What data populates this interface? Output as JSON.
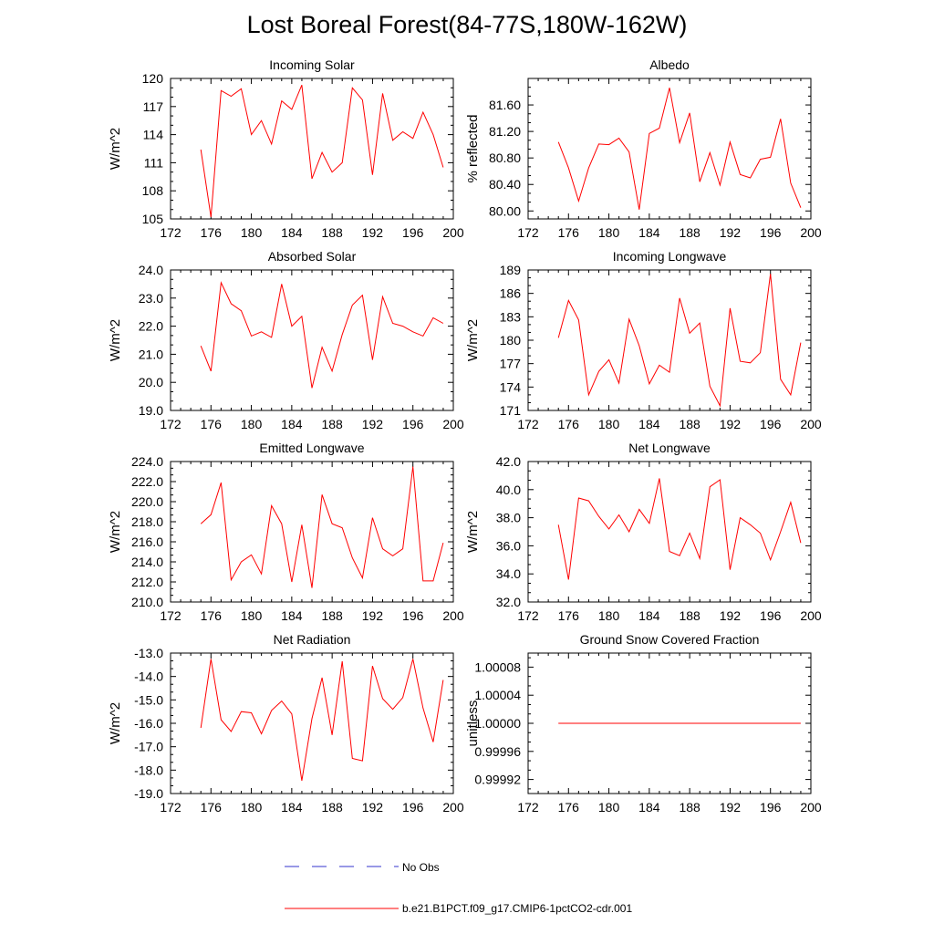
{
  "title": "Lost Boreal Forest(84-77S,180W-162W)",
  "series_color": "#ff0000",
  "obs_color": "#3333cc",
  "legend": {
    "obs_label": "No Obs",
    "model_label": "b.e21.B1PCT.f09_g17.CMIP6-1pctCO2-cdr.001"
  },
  "chart_data": [
    {
      "type": "line",
      "title": "Incoming Solar",
      "ylabel": "W/m^2",
      "xlim": [
        172,
        200
      ],
      "xticks": [
        "172",
        "176",
        "180",
        "184",
        "188",
        "192",
        "196",
        "200"
      ],
      "ylim": [
        105,
        120
      ],
      "yticks": [
        "105",
        "108",
        "111",
        "114",
        "117",
        "120"
      ],
      "x": [
        175,
        176,
        177,
        178,
        179,
        180,
        181,
        182,
        183,
        184,
        185,
        186,
        187,
        188,
        189,
        190,
        191,
        192,
        193,
        194,
        195,
        196,
        197,
        198,
        199
      ],
      "series": [
        {
          "values": [
            112.4,
            105.2,
            118.7,
            118.1,
            118.9,
            114.0,
            115.5,
            113.0,
            117.6,
            116.7,
            119.3,
            109.3,
            112.1,
            110.0,
            111.0,
            119.0,
            117.7,
            109.7,
            118.4,
            113.4,
            114.3,
            113.6,
            116.4,
            114.0,
            110.5
          ]
        }
      ]
    },
    {
      "type": "line",
      "title": "Albedo",
      "ylabel": "% reflected",
      "xlim": [
        172,
        200
      ],
      "xticks": [
        "172",
        "176",
        "180",
        "184",
        "188",
        "192",
        "196",
        "200"
      ],
      "ylim": [
        79.88,
        82.0
      ],
      "yticks": [
        "80.00",
        "80.40",
        "80.80",
        "81.20",
        "81.60"
      ],
      "x": [
        175,
        176,
        177,
        178,
        179,
        180,
        181,
        182,
        183,
        184,
        185,
        186,
        187,
        188,
        189,
        190,
        191,
        192,
        193,
        194,
        195,
        196,
        197,
        198,
        199
      ],
      "series": [
        {
          "values": [
            81.04,
            80.65,
            80.15,
            80.65,
            81.01,
            81.0,
            81.1,
            80.89,
            80.02,
            81.17,
            81.25,
            81.86,
            81.03,
            81.48,
            80.44,
            80.88,
            80.39,
            81.04,
            80.55,
            80.5,
            80.78,
            80.81,
            81.39,
            80.42,
            80.05
          ]
        }
      ]
    },
    {
      "type": "line",
      "title": "Absorbed Solar",
      "ylabel": "W/m^2",
      "xlim": [
        172,
        200
      ],
      "xticks": [
        "172",
        "176",
        "180",
        "184",
        "188",
        "192",
        "196",
        "200"
      ],
      "ylim": [
        19.0,
        24.0
      ],
      "yticks": [
        "19.0",
        "20.0",
        "21.0",
        "22.0",
        "23.0",
        "24.0"
      ],
      "x": [
        175,
        176,
        177,
        178,
        179,
        180,
        181,
        182,
        183,
        184,
        185,
        186,
        187,
        188,
        189,
        190,
        191,
        192,
        193,
        194,
        195,
        196,
        197,
        198,
        199
      ],
      "series": [
        {
          "values": [
            21.3,
            20.4,
            23.55,
            22.8,
            22.55,
            21.65,
            21.8,
            21.6,
            23.5,
            22.0,
            22.35,
            19.8,
            21.25,
            20.4,
            21.7,
            22.75,
            23.1,
            20.8,
            23.05,
            22.1,
            22.0,
            21.8,
            21.65,
            22.3,
            22.1
          ]
        }
      ]
    },
    {
      "type": "line",
      "title": "Incoming Longwave",
      "ylabel": "W/m^2",
      "xlim": [
        172,
        200
      ],
      "xticks": [
        "172",
        "176",
        "180",
        "184",
        "188",
        "192",
        "196",
        "200"
      ],
      "ylim": [
        171,
        189
      ],
      "yticks": [
        "171",
        "174",
        "177",
        "180",
        "183",
        "186",
        "189"
      ],
      "x": [
        175,
        176,
        177,
        178,
        179,
        180,
        181,
        182,
        183,
        184,
        185,
        186,
        187,
        188,
        189,
        190,
        191,
        192,
        193,
        194,
        195,
        196,
        197,
        198,
        199
      ],
      "series": [
        {
          "values": [
            180.3,
            185.1,
            182.6,
            173.0,
            176.0,
            177.5,
            174.5,
            182.7,
            179.3,
            174.4,
            176.8,
            175.9,
            185.4,
            180.9,
            182.2,
            174.1,
            171.6,
            184.1,
            177.3,
            177.1,
            178.4,
            188.5,
            175.0,
            173.0,
            179.7
          ]
        }
      ]
    },
    {
      "type": "line",
      "title": "Emitted Longwave",
      "ylabel": "W/m^2",
      "xlim": [
        172,
        200
      ],
      "xticks": [
        "172",
        "176",
        "180",
        "184",
        "188",
        "192",
        "196",
        "200"
      ],
      "ylim": [
        210.0,
        224.0
      ],
      "yticks": [
        "210.0",
        "212.0",
        "214.0",
        "216.0",
        "218.0",
        "220.0",
        "222.0",
        "224.0"
      ],
      "x": [
        175,
        176,
        177,
        178,
        179,
        180,
        181,
        182,
        183,
        184,
        185,
        186,
        187,
        188,
        189,
        190,
        191,
        192,
        193,
        194,
        195,
        196,
        197,
        198,
        199
      ],
      "series": [
        {
          "values": [
            217.8,
            218.7,
            221.9,
            212.2,
            214.0,
            214.7,
            212.8,
            219.6,
            217.8,
            212.0,
            217.7,
            211.4,
            220.7,
            217.8,
            217.4,
            214.4,
            212.4,
            218.4,
            215.3,
            214.6,
            215.3,
            223.5,
            212.1,
            212.1,
            215.9
          ]
        }
      ]
    },
    {
      "type": "line",
      "title": "Net Longwave",
      "ylabel": "W/m^2",
      "xlim": [
        172,
        200
      ],
      "xticks": [
        "172",
        "176",
        "180",
        "184",
        "188",
        "192",
        "196",
        "200"
      ],
      "ylim": [
        32.0,
        42.0
      ],
      "yticks": [
        "32.0",
        "34.0",
        "36.0",
        "38.0",
        "40.0",
        "42.0"
      ],
      "x": [
        175,
        176,
        177,
        178,
        179,
        180,
        181,
        182,
        183,
        184,
        185,
        186,
        187,
        188,
        189,
        190,
        191,
        192,
        193,
        194,
        195,
        196,
        197,
        198,
        199
      ],
      "series": [
        {
          "values": [
            37.5,
            33.6,
            39.4,
            39.2,
            38.1,
            37.2,
            38.2,
            37.0,
            38.6,
            37.6,
            40.8,
            35.6,
            35.3,
            36.9,
            35.1,
            40.2,
            40.7,
            34.3,
            38.0,
            37.5,
            36.9,
            35.0,
            37.0,
            39.1,
            36.2
          ]
        }
      ]
    },
    {
      "type": "line",
      "title": "Net Radiation",
      "ylabel": "W/m^2",
      "xlim": [
        172,
        200
      ],
      "xticks": [
        "172",
        "176",
        "180",
        "184",
        "188",
        "192",
        "196",
        "200"
      ],
      "ylim": [
        -19.0,
        -13.0
      ],
      "yticks": [
        "-19.0",
        "-18.0",
        "-17.0",
        "-16.0",
        "-15.0",
        "-14.0",
        "-13.0"
      ],
      "x": [
        175,
        176,
        177,
        178,
        179,
        180,
        181,
        182,
        183,
        184,
        185,
        186,
        187,
        188,
        189,
        190,
        191,
        192,
        193,
        194,
        195,
        196,
        197,
        198,
        199
      ],
      "series": [
        {
          "values": [
            -16.2,
            -13.25,
            -15.85,
            -16.35,
            -15.5,
            -15.55,
            -16.45,
            -15.45,
            -15.05,
            -15.6,
            -18.45,
            -15.8,
            -14.05,
            -16.5,
            -13.35,
            -17.5,
            -17.6,
            -13.55,
            -14.95,
            -15.4,
            -14.9,
            -13.25,
            -15.35,
            -16.8,
            -14.15
          ]
        }
      ]
    },
    {
      "type": "line",
      "title": "Ground Snow Covered Fraction",
      "ylabel": "unitless",
      "xlim": [
        172,
        200
      ],
      "xticks": [
        "172",
        "176",
        "180",
        "184",
        "188",
        "192",
        "196",
        "200"
      ],
      "ylim": [
        0.9999,
        1.0001
      ],
      "yticks": [
        "0.99992",
        "0.99996",
        "1.00000",
        "1.00004",
        "1.00008"
      ],
      "x": [
        175,
        199
      ],
      "series": [
        {
          "values": [
            1.0,
            1.0
          ]
        }
      ]
    }
  ]
}
